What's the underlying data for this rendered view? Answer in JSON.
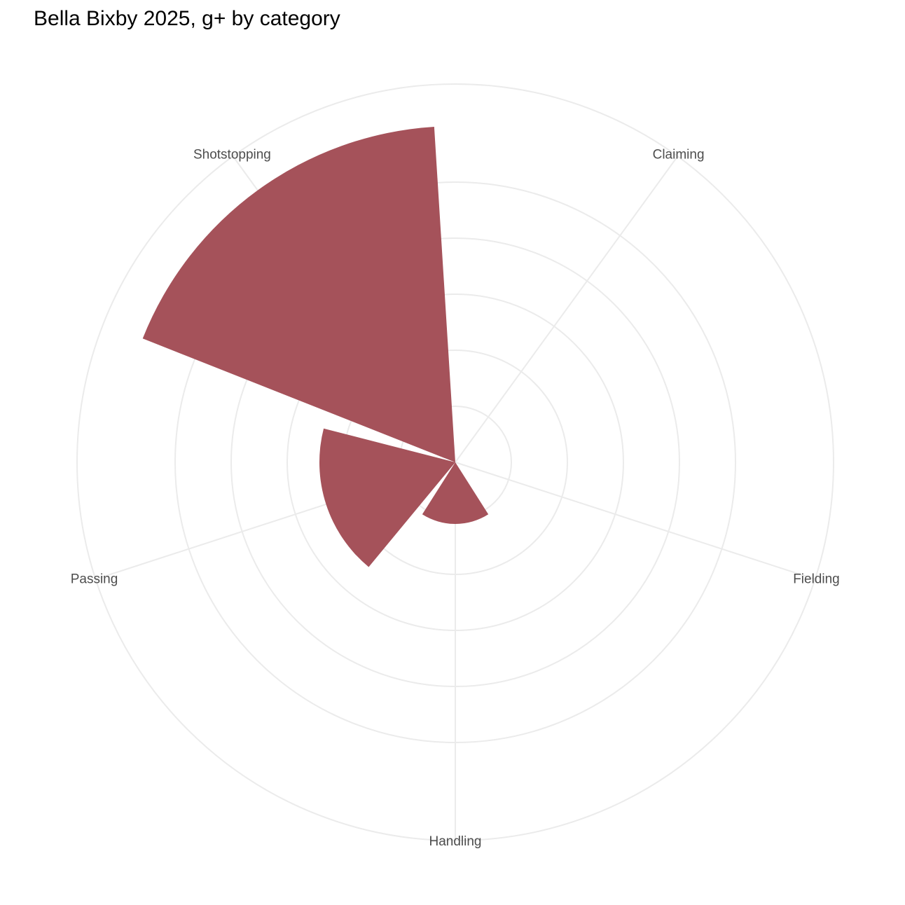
{
  "chart_data": {
    "type": "polar-bar",
    "title": "Bella Bixby 2025, g+ by category",
    "categories": [
      "Claiming",
      "Fielding",
      "Handling",
      "Passing",
      "Shotstopping"
    ],
    "values": [
      0,
      0,
      22,
      48.5,
      120
    ],
    "color": "#a5525a",
    "ylim": [
      0,
      135
    ],
    "yticks": [
      20,
      40,
      60,
      80,
      100
    ],
    "grid": true
  }
}
